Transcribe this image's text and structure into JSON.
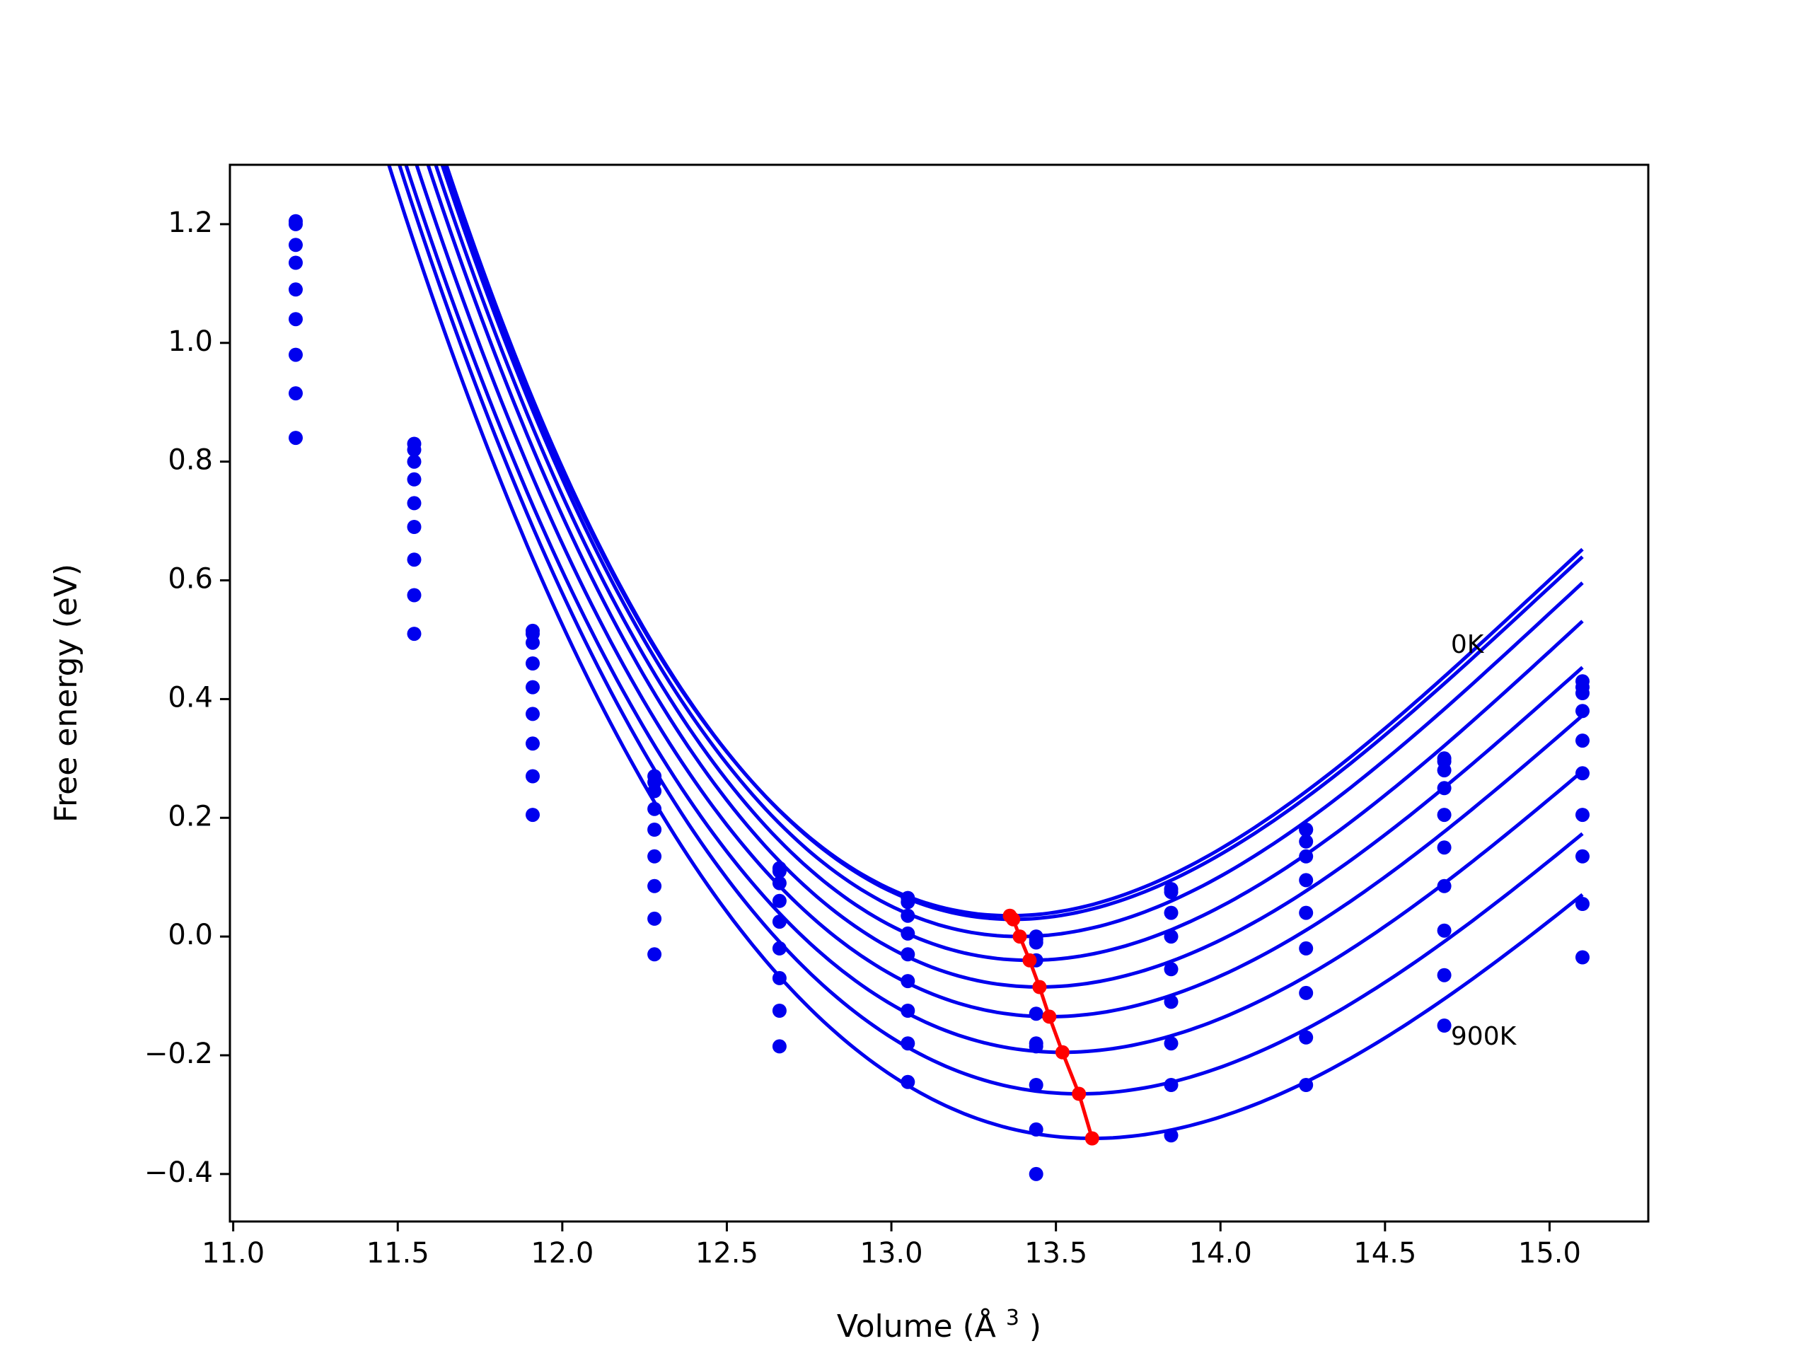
{
  "chart_data": {
    "type": "line",
    "title": "",
    "xlabel": "Volume",
    "xlabel_unit": "(Å",
    "xlabel_unit_sup": "3",
    "xlabel_unit_close": ")",
    "ylabel": "Free energy (eV)",
    "xlim": [
      10.99,
      15.3
    ],
    "ylim": [
      -0.48,
      1.3
    ],
    "xticks": [
      11.0,
      11.5,
      12.0,
      12.5,
      13.0,
      13.5,
      14.0,
      14.5,
      15.0
    ],
    "xtick_labels": [
      "11.0",
      "11.5",
      "12.0",
      "12.5",
      "13.0",
      "13.5",
      "14.0",
      "14.5",
      "15.0"
    ],
    "yticks": [
      -0.4,
      -0.2,
      0.0,
      0.2,
      0.4,
      0.6,
      0.8,
      1.0,
      1.2
    ],
    "ytick_labels": [
      "−0.4",
      "−0.2",
      "0.0",
      "0.2",
      "0.4",
      "0.6",
      "0.8",
      "1.0",
      "1.2"
    ],
    "grid": false,
    "legend": "none",
    "colors": {
      "curves": "#0000ee",
      "min_path": "#ff0000"
    },
    "x": [
      11.19,
      11.55,
      11.91,
      12.28,
      12.66,
      13.05,
      13.44,
      13.85,
      14.26,
      14.68,
      15.1
    ],
    "series": [
      {
        "fit": [
          13.36,
          0.035,
          0.317,
          0.065
        ],
        "values": [
          1.205,
          0.83,
          0.515,
          0.27,
          0.115,
          0.065,
          0.0,
          0.08,
          0.18,
          0.3,
          0.43
        ]
      },
      {
        "fit": [
          13.37,
          0.029,
          0.3165,
          0.065
        ],
        "values": [
          1.2,
          0.82,
          0.51,
          0.26,
          0.11,
          0.058,
          -0.005,
          0.075,
          0.18,
          0.295,
          0.42
        ]
      },
      {
        "fit": [
          13.39,
          0.0,
          0.3115,
          0.063
        ],
        "values": [
          1.165,
          0.8,
          0.495,
          0.245,
          0.09,
          0.035,
          -0.01,
          0.04,
          0.16,
          0.28,
          0.41
        ]
      },
      {
        "fit": [
          13.42,
          -0.04,
          0.3032,
          0.06
        ],
        "values": [
          1.135,
          0.77,
          0.46,
          0.215,
          0.06,
          0.005,
          -0.04,
          0.0,
          0.135,
          0.25,
          0.38
        ]
      },
      {
        "fit": [
          13.45,
          -0.085,
          0.2935,
          0.058
        ],
        "values": [
          1.09,
          0.73,
          0.42,
          0.18,
          0.025,
          -0.03,
          -0.13,
          -0.055,
          0.095,
          0.205,
          0.33
        ]
      },
      {
        "fit": [
          13.48,
          -0.135,
          0.2824,
          0.055
        ],
        "values": [
          1.04,
          0.69,
          0.375,
          0.135,
          -0.02,
          -0.075,
          -0.18,
          -0.11,
          0.04,
          0.15,
          0.275
        ]
      },
      {
        "fit": [
          13.52,
          -0.195,
          0.2719,
          0.052
        ],
        "values": [
          0.98,
          0.635,
          0.325,
          0.085,
          -0.07,
          -0.125,
          -0.185,
          -0.18,
          -0.02,
          0.085,
          0.205
        ]
      },
      {
        "fit": [
          13.57,
          -0.265,
          0.2637,
          0.05
        ],
        "values": [
          0.915,
          0.575,
          0.27,
          0.03,
          -0.125,
          -0.18,
          -0.25,
          -0.25,
          -0.095,
          0.01,
          0.135
        ]
      },
      {
        "fit": [
          13.61,
          -0.34,
          0.2565,
          0.048
        ],
        "values": [
          0.84,
          0.51,
          0.205,
          -0.03,
          -0.185,
          -0.245,
          -0.325,
          -0.335,
          -0.17,
          -0.065,
          0.055
        ]
      },
      {
        "values": [
          null,
          null,
          null,
          null,
          null,
          null,
          -0.4,
          null,
          -0.25,
          -0.15,
          -0.035
        ]
      }
    ],
    "min_path": {
      "x": [
        13.36,
        13.37,
        13.39,
        13.42,
        13.45,
        13.48,
        13.52,
        13.57,
        13.61
      ],
      "y": [
        0.035,
        0.029,
        0.0,
        -0.04,
        -0.085,
        -0.135,
        -0.195,
        -0.265,
        -0.34
      ]
    },
    "annotations": [
      {
        "text": "0K",
        "x": 14.7,
        "y": 0.49
      },
      {
        "text": "900K",
        "x": 14.7,
        "y": -0.17
      }
    ]
  }
}
